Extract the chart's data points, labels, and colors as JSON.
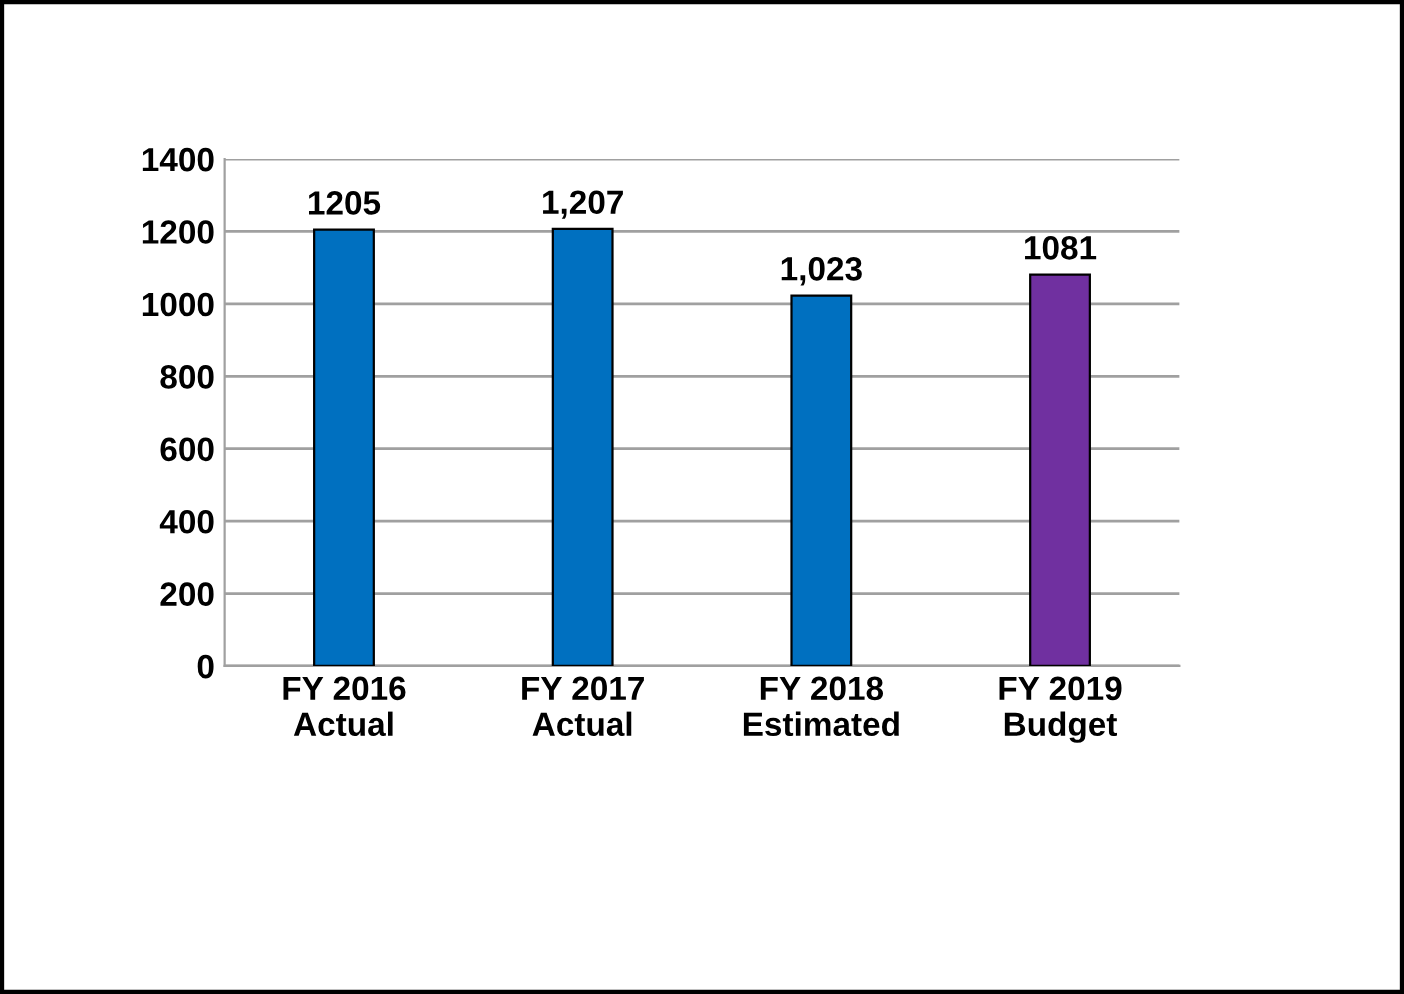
{
  "chart_data": {
    "type": "bar",
    "categories": [
      "FY 2016\nActual",
      "FY 2017\nActual",
      "FY 2018\nEstimated",
      "FY 2019\nBudget"
    ],
    "values": [
      1205,
      1207,
      1023,
      1081
    ],
    "colors": [
      "#0070c0",
      "#0070c0",
      "#0070c0",
      "#7030a0"
    ],
    "value_labels": [
      "1205",
      "1,207",
      "1,023",
      "1081"
    ],
    "ylim": [
      0,
      1400
    ],
    "yticks": [
      0,
      200,
      400,
      600,
      800,
      1000,
      1200,
      1400
    ],
    "grid": "y",
    "legend": false
  }
}
